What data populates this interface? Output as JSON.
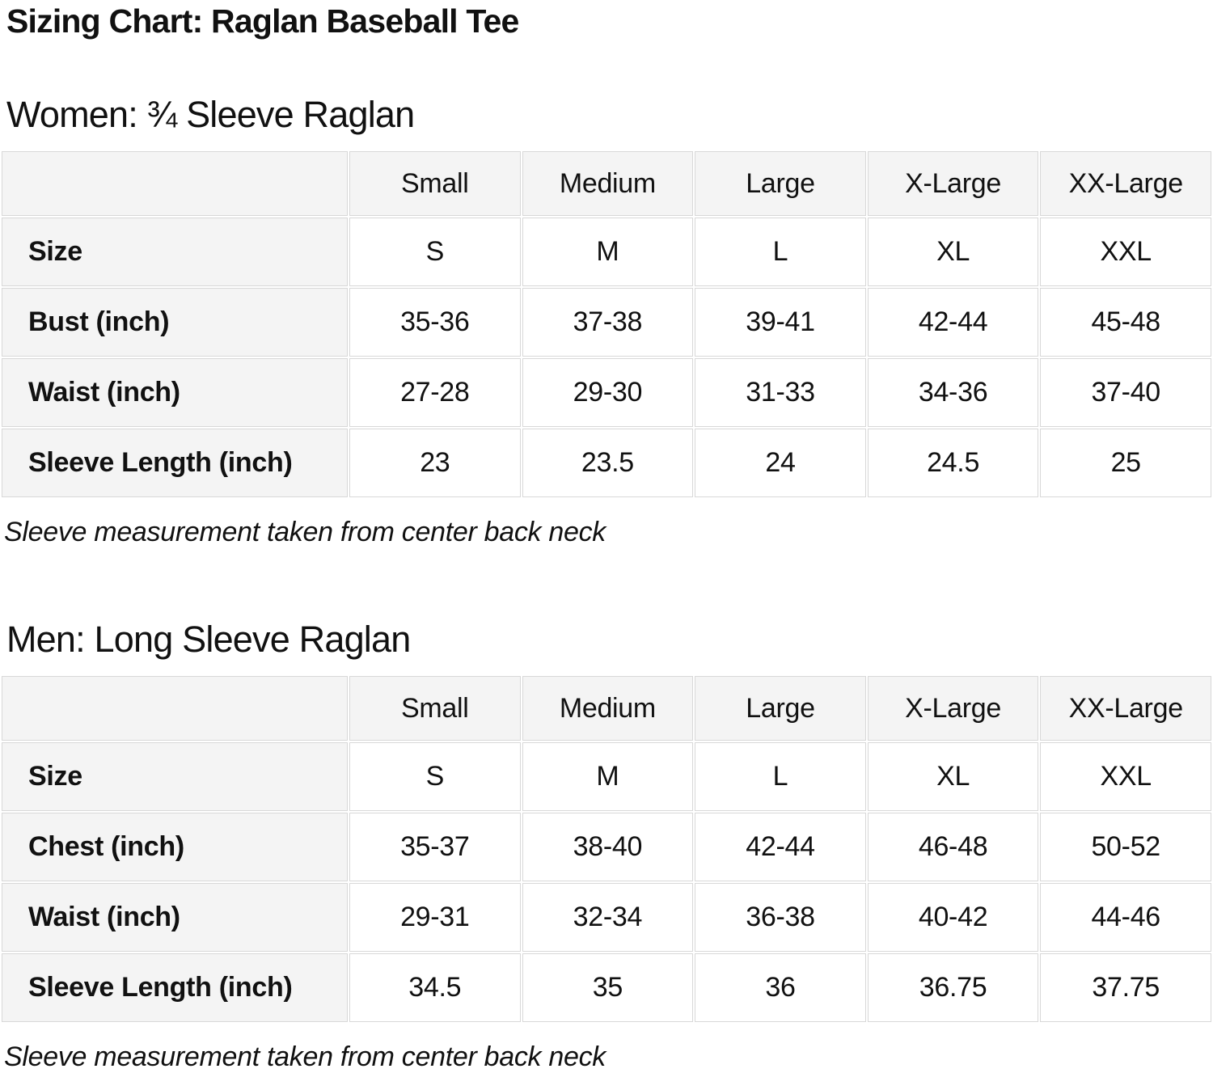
{
  "page_title": "Sizing Chart: Raglan Baseball Tee",
  "theme": {
    "text_color": "#111111",
    "header_cell_background": "#f4f4f4",
    "data_cell_background": "#ffffff",
    "table_border_color": "#d8d8d8",
    "page_background": "#ffffff"
  },
  "sections": [
    {
      "heading": "Women: ¾ Sleeve Raglan",
      "columns": [
        "",
        "Small",
        "Medium",
        "Large",
        "X-Large",
        "XX-Large"
      ],
      "rows": [
        {
          "label": "Size",
          "values": [
            "S",
            "M",
            "L",
            "XL",
            "XXL"
          ]
        },
        {
          "label": "Bust (inch)",
          "values": [
            "35-36",
            "37-38",
            "39-41",
            "42-44",
            "45-48"
          ]
        },
        {
          "label": "Waist (inch)",
          "values": [
            "27-28",
            "29-30",
            "31-33",
            "34-36",
            "37-40"
          ]
        },
        {
          "label": "Sleeve Length (inch)",
          "values": [
            "23",
            "23.5",
            "24",
            "24.5",
            "25"
          ]
        }
      ],
      "footnote": "Sleeve measurement taken from center back neck"
    },
    {
      "heading": "Men: Long Sleeve Raglan",
      "columns": [
        "",
        "Small",
        "Medium",
        "Large",
        "X-Large",
        "XX-Large"
      ],
      "rows": [
        {
          "label": "Size",
          "values": [
            "S",
            "M",
            "L",
            "XL",
            "XXL"
          ]
        },
        {
          "label": "Chest (inch)",
          "values": [
            "35-37",
            "38-40",
            "42-44",
            "46-48",
            "50-52"
          ]
        },
        {
          "label": "Waist (inch)",
          "values": [
            "29-31",
            "32-34",
            "36-38",
            "40-42",
            "44-46"
          ]
        },
        {
          "label": "Sleeve Length (inch)",
          "values": [
            "34.5",
            "35",
            "36",
            "36.75",
            "37.75"
          ]
        }
      ],
      "footnote": "Sleeve measurement taken from center back neck"
    }
  ]
}
